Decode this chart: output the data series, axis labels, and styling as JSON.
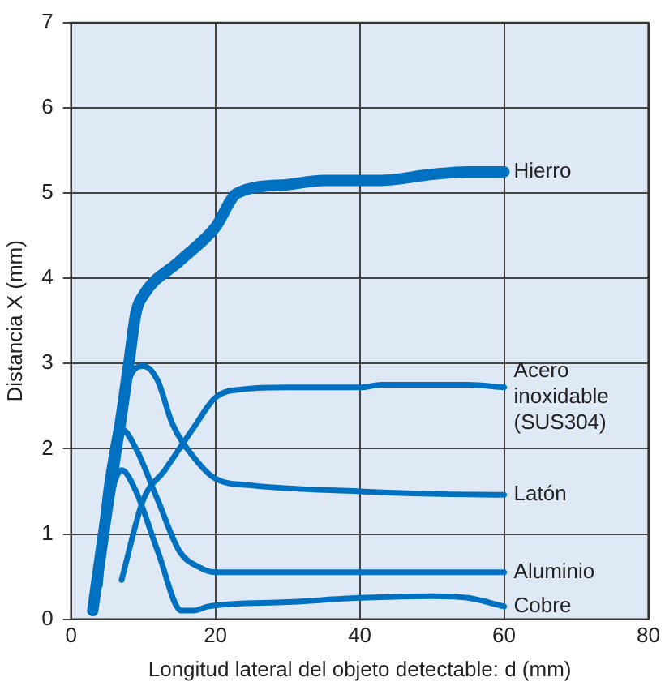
{
  "chart_data": {
    "type": "line",
    "xlabel": "Longitud lateral del objeto detectable: d (mm)",
    "ylabel": "Distancia X (mm)",
    "xlim": [
      0,
      80
    ],
    "xticks": [
      0,
      20,
      40,
      60,
      80
    ],
    "ylim": [
      0,
      7
    ],
    "yticks": [
      0,
      1,
      2,
      3,
      4,
      5,
      6,
      7
    ],
    "grid": true,
    "legend": false,
    "marker": "none",
    "line_style": "solid",
    "series": [
      {
        "name": "Hierro",
        "color": "#0070c0",
        "x": [
          3,
          5,
          7,
          8,
          9,
          10,
          15,
          20,
          23,
          30,
          35,
          40,
          43,
          50,
          55,
          60
        ],
        "values": [
          0.1,
          1.3,
          2.4,
          3.0,
          3.6,
          3.8,
          4.2,
          4.6,
          5.0,
          5.1,
          5.15,
          5.15,
          5.15,
          5.22,
          5.25,
          5.25
        ]
      },
      {
        "name": "Acero inoxidable (SUS304)",
        "color": "#0070c0",
        "x": [
          7,
          10,
          13,
          17,
          20,
          24,
          30,
          40,
          43,
          55,
          60
        ],
        "values": [
          0.46,
          1.4,
          1.75,
          2.25,
          2.6,
          2.7,
          2.72,
          2.72,
          2.75,
          2.75,
          2.72
        ]
      },
      {
        "name": "Latón",
        "color": "#0070c0",
        "x": [
          4,
          5,
          7,
          8.5,
          10,
          12,
          14,
          17,
          20,
          25,
          40,
          50,
          60
        ],
        "values": [
          0.4,
          1.5,
          2.5,
          2.9,
          2.97,
          2.8,
          2.3,
          1.9,
          1.65,
          1.57,
          1.5,
          1.47,
          1.46
        ]
      },
      {
        "name": "Aluminio",
        "color": "#0070c0",
        "x": [
          4,
          5,
          7,
          9,
          12,
          15,
          18,
          20,
          60
        ],
        "values": [
          0.8,
          1.6,
          2.23,
          2.0,
          1.4,
          0.8,
          0.6,
          0.55,
          0.55
        ]
      },
      {
        "name": "Cobre",
        "color": "#0070c0",
        "x": [
          5,
          6,
          7,
          9,
          12,
          15.3,
          17,
          19,
          30,
          40,
          50,
          55,
          60
        ],
        "values": [
          1.2,
          1.6,
          1.75,
          1.5,
          0.8,
          0.1,
          0.1,
          0.15,
          0.2,
          0.25,
          0.27,
          0.25,
          0.15
        ]
      }
    ]
  }
}
